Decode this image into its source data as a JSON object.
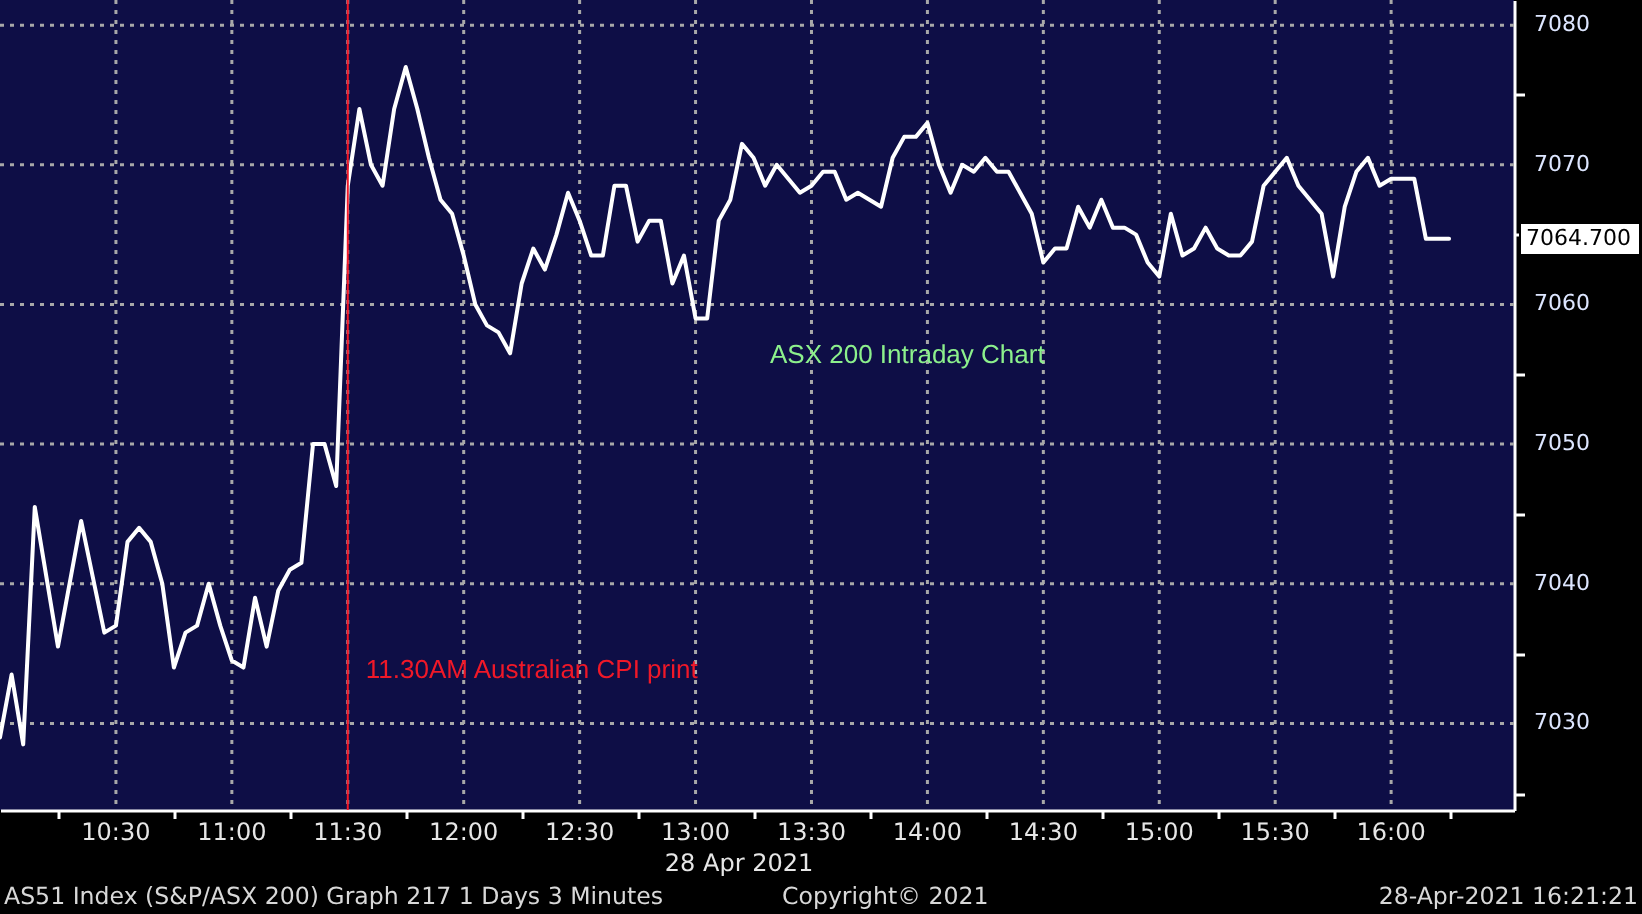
{
  "chart_data": {
    "type": "line",
    "title": "ASX 200 Intraday Chart",
    "xlabel": "28 Apr 2021",
    "annotations": [
      "AS51 Index (S&P/ASX 200) Graph 217 1 Days 3 Minutes",
      "Copyright© 2021",
      "28-Apr-2021 16:21:21",
      "7064.700"
    ],
    "x": [
      10.0,
      10.05,
      10.1,
      10.15,
      10.25,
      10.35,
      10.45,
      10.5,
      10.55,
      10.6,
      10.65,
      10.7,
      10.75,
      10.8,
      10.85,
      10.9,
      10.95,
      11.0,
      11.05,
      11.1,
      11.15,
      11.2,
      11.25,
      11.3,
      11.35,
      11.4,
      11.45,
      11.5,
      11.55,
      11.6,
      11.65,
      11.7,
      11.75,
      11.8,
      11.85,
      11.9,
      11.95,
      12.0,
      12.05,
      12.1,
      12.15,
      12.2,
      12.25,
      12.3,
      12.35,
      12.4,
      12.45,
      12.5,
      12.55,
      12.6,
      12.65,
      12.7,
      12.75,
      12.8,
      12.85,
      12.9,
      12.95,
      13.0,
      13.05,
      13.1,
      13.15,
      13.2,
      13.25,
      13.3,
      13.35,
      13.4,
      13.45,
      13.5,
      13.55,
      13.6,
      13.65,
      13.7,
      13.75,
      13.8,
      13.85,
      13.9,
      13.95,
      14.0,
      14.05,
      14.1,
      14.15,
      14.2,
      14.25,
      14.3,
      14.35,
      14.4,
      14.45,
      14.5,
      14.55,
      14.6,
      14.65,
      14.7,
      14.75,
      14.8,
      14.85,
      14.9,
      14.95,
      15.0,
      15.05,
      15.1,
      15.15,
      15.2,
      15.25,
      15.3,
      15.35,
      15.4,
      15.45,
      15.5,
      15.55,
      15.6,
      15.65,
      15.7,
      15.75,
      15.8,
      15.85,
      15.9,
      15.95,
      16.0,
      16.1,
      16.15,
      16.25
    ],
    "series": [
      {
        "color": "#ffffff",
        "values": [
          7029,
          7033.5,
          7028.5,
          7045.5,
          7035.5,
          7044.5,
          7036.5,
          7037,
          7043,
          7044,
          7043,
          7040,
          7034,
          7036.5,
          7037,
          7040,
          7037,
          7034.5,
          7034,
          7039,
          7035.5,
          7039.5,
          7041,
          7041.5,
          7050,
          7050,
          7047,
          7068.5,
          7074,
          7070,
          7068.5,
          7074,
          7077,
          7074,
          7070.5,
          7067.5,
          7066.5,
          7063.5,
          7060,
          7058.5,
          7058,
          7056.5,
          7061.5,
          7064,
          7062.5,
          7065,
          7068,
          7066,
          7063.5,
          7063.5,
          7068.5,
          7068.5,
          7064.5,
          7066,
          7066,
          7061.5,
          7063.5,
          7059,
          7059,
          7066,
          7067.5,
          7071.5,
          7070.5,
          7068.5,
          7070,
          7069,
          7068,
          7068.5,
          7069.5,
          7069.5,
          7067.5,
          7068,
          7067.5,
          7067,
          7070.5,
          7072,
          7072,
          7073,
          7070,
          7068,
          7070,
          7069.5,
          7070.5,
          7069.5,
          7069.5,
          7068,
          7066.5,
          7063,
          7064,
          7064,
          7067,
          7065.5,
          7067.5,
          7065.5,
          7065.5,
          7065,
          7063,
          7062,
          7066.5,
          7063.5,
          7064,
          7065.5,
          7064,
          7063.5,
          7063.5,
          7064.5,
          7068.5,
          7069.5,
          7070.5,
          7068.5,
          7067.5,
          7066.5,
          7062,
          7067,
          7069.5,
          7070.5,
          7068.5,
          7069,
          7069,
          7064.7,
          7064.7
        ]
      }
    ],
    "xlim": [
      10.0,
      16.53
    ],
    "ylim": [
      7023.8,
      7081.8
    ],
    "xticks": [
      {
        "value": 10.25,
        "label": null
      },
      {
        "value": 10.5,
        "label": "10:30"
      },
      {
        "value": 10.75,
        "label": null
      },
      {
        "value": 11,
        "label": "11:00"
      },
      {
        "value": 11.25,
        "label": null
      },
      {
        "value": 11.5,
        "label": "11:30"
      },
      {
        "value": 11.75,
        "label": null
      },
      {
        "value": 12,
        "label": "12:00"
      },
      {
        "value": 12.25,
        "label": null
      },
      {
        "value": 12.5,
        "label": "12:30"
      },
      {
        "value": 12.75,
        "label": null
      },
      {
        "value": 13,
        "label": "13:00"
      },
      {
        "value": 13.25,
        "label": null
      },
      {
        "value": 13.5,
        "label": "13:30"
      },
      {
        "value": 13.75,
        "label": null
      },
      {
        "value": 14,
        "label": "14:00"
      },
      {
        "value": 14.25,
        "label": null
      },
      {
        "value": 14.5,
        "label": "14:30"
      },
      {
        "value": 14.75,
        "label": null
      },
      {
        "value": 15,
        "label": "15:00"
      },
      {
        "value": 15.25,
        "label": null
      },
      {
        "value": 15.5,
        "label": "15:30"
      },
      {
        "value": 15.75,
        "label": null
      },
      {
        "value": 16,
        "label": "16:00"
      },
      {
        "value": 16.25,
        "label": null
      }
    ],
    "yticks": [
      {
        "value": 7025,
        "label": null
      },
      7030,
      {
        "value": 7035,
        "label": null
      },
      7040,
      {
        "value": 7045,
        "label": null
      },
      7050,
      {
        "value": 7055,
        "label": null
      },
      7060,
      {
        "value": 7065,
        "label": null
      },
      7070,
      {
        "value": 7075,
        "label": null
      },
      7080
    ],
    "ref_lines": [
      {
        "axis": "x",
        "value": 11.5,
        "label": "11.30AM Australian CPI print",
        "color": "#f01828"
      }
    ],
    "grid": true
  }
}
